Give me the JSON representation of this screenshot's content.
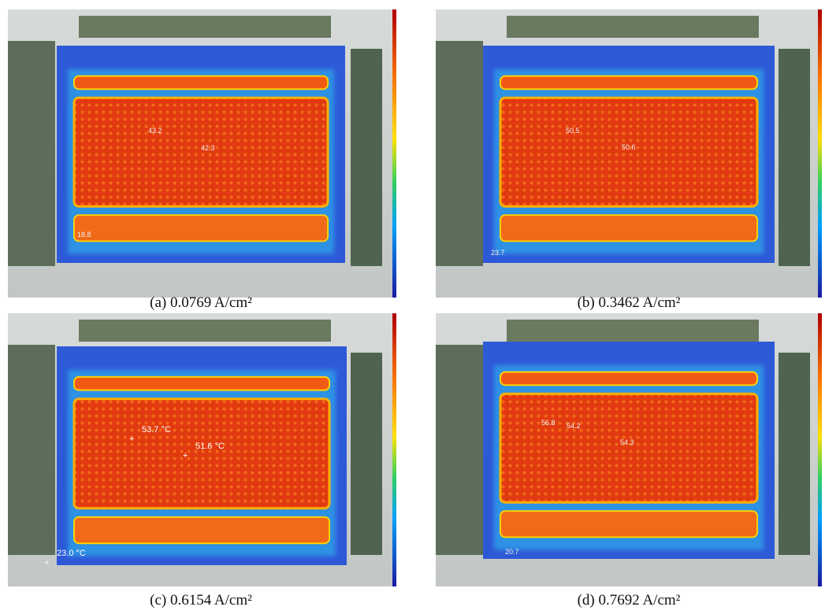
{
  "panels": [
    {
      "caption": "(a)  0.0769 A/cm²",
      "labels": [
        "43.2",
        "42.3",
        "18.8"
      ]
    },
    {
      "caption": "(b)  0.3462 A/cm²",
      "labels": [
        "50.5",
        "50.6",
        "23.7"
      ]
    },
    {
      "caption": "(c)  0.6154 A/cm²",
      "labels": [
        "53.7 °C",
        "51.6 °C",
        "23.0 °C"
      ]
    },
    {
      "caption": "(d)  0.7692 A/cm²",
      "labels": [
        "56.8",
        "54.2",
        "54.3",
        "20.7"
      ]
    }
  ]
}
